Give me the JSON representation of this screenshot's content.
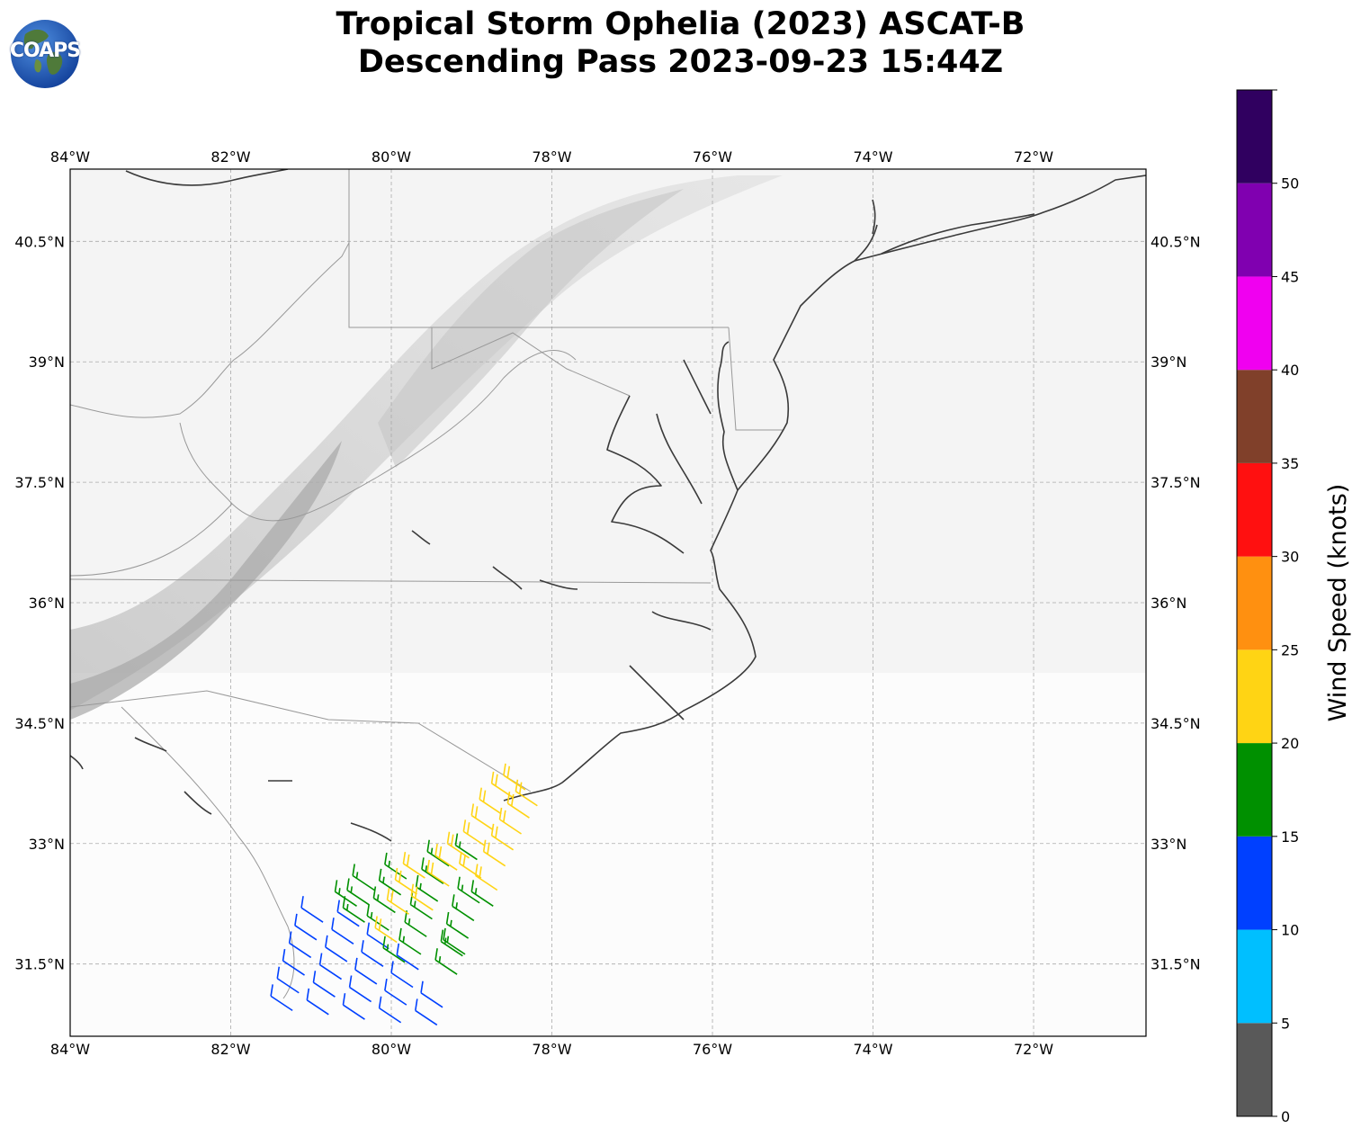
{
  "title": {
    "line1": "Tropical Storm Ophelia (2023) ASCAT-B",
    "line2": "Descending Pass 2023-09-23 15:44Z"
  },
  "logo": {
    "text": "COAPS",
    "icon": "globe-logo-icon"
  },
  "map": {
    "projection": "PlateCarree",
    "lon_range": [
      -84,
      -70.6
    ],
    "lat_range": [
      30.6,
      41.4
    ],
    "lon_ticks": [
      "84°W",
      "82°W",
      "80°W",
      "78°W",
      "76°W",
      "74°W",
      "72°W"
    ],
    "lat_ticks": [
      "40.5°N",
      "39°N",
      "37.5°N",
      "36°N",
      "34.5°N",
      "33°N",
      "31.5°N"
    ],
    "grid": true,
    "background": "grayscale satellite imagery",
    "features": [
      "coastlines",
      "state borders"
    ]
  },
  "colorbar": {
    "label": "Wind Speed (knots)",
    "ticks": [
      "0",
      "5",
      "10",
      "15",
      "20",
      "25",
      "30",
      "35",
      "40",
      "45",
      "50"
    ],
    "bins": [
      {
        "min": 0,
        "max": 5,
        "color": "#595959"
      },
      {
        "min": 5,
        "max": 10,
        "color": "#00bfff"
      },
      {
        "min": 10,
        "max": 15,
        "color": "#0040ff"
      },
      {
        "min": 15,
        "max": 20,
        "color": "#009000"
      },
      {
        "min": 20,
        "max": 25,
        "color": "#ffd414"
      },
      {
        "min": 25,
        "max": 30,
        "color": "#ff9010"
      },
      {
        "min": 30,
        "max": 35,
        "color": "#ff1010"
      },
      {
        "min": 35,
        "max": 40,
        "color": "#80402a"
      },
      {
        "min": 40,
        "max": 45,
        "color": "#f000f0"
      },
      {
        "min": 45,
        "max": 50,
        "color": "#8000b0"
      },
      {
        "min": 50,
        "max": 55,
        "color": "#300060"
      }
    ]
  },
  "chart_data": {
    "type": "scatter",
    "series": [
      {
        "speed_kt": 12,
        "points": [
          [
            -81.5,
            31.1
          ],
          [
            -81.42,
            31.32
          ],
          [
            -81.35,
            31.54
          ],
          [
            -81.27,
            31.76
          ],
          [
            -81.2,
            31.98
          ],
          [
            -81.12,
            32.2
          ],
          [
            -81.05,
            31.05
          ],
          [
            -80.97,
            31.27
          ],
          [
            -80.89,
            31.49
          ],
          [
            -80.82,
            31.71
          ],
          [
            -80.74,
            31.93
          ],
          [
            -80.67,
            32.15
          ],
          [
            -80.6,
            30.99
          ],
          [
            -80.52,
            31.21
          ],
          [
            -80.45,
            31.43
          ],
          [
            -80.37,
            31.65
          ],
          [
            -80.3,
            31.87
          ],
          [
            -80.15,
            30.95
          ],
          [
            -80.08,
            31.17
          ],
          [
            -80.0,
            31.39
          ],
          [
            -79.93,
            31.61
          ],
          [
            -79.7,
            30.92
          ],
          [
            -79.63,
            31.14
          ]
        ]
      },
      {
        "speed_kt": 18,
        "points": [
          [
            -80.6,
            32.2
          ],
          [
            -80.55,
            32.42
          ],
          [
            -80.48,
            32.6
          ],
          [
            -80.3,
            32.1
          ],
          [
            -80.22,
            32.32
          ],
          [
            -80.15,
            32.54
          ],
          [
            -80.08,
            32.74
          ],
          [
            -79.9,
            31.8
          ],
          [
            -79.83,
            32.02
          ],
          [
            -79.76,
            32.24
          ],
          [
            -79.69,
            32.46
          ],
          [
            -79.62,
            32.68
          ],
          [
            -79.55,
            32.9
          ],
          [
            -79.45,
            31.55
          ],
          [
            -79.38,
            31.78
          ],
          [
            -79.31,
            32.0
          ],
          [
            -79.24,
            32.22
          ],
          [
            -79.17,
            32.44
          ],
          [
            -79.2,
            32.98
          ],
          [
            -79.0,
            32.4
          ],
          [
            -79.35,
            31.8
          ],
          [
            -80.1,
            31.7
          ],
          [
            -80.7,
            32.4
          ]
        ]
      },
      {
        "speed_kt": 22,
        "points": [
          [
            -80.2,
            31.95
          ],
          [
            -80.05,
            32.3
          ],
          [
            -79.95,
            32.55
          ],
          [
            -79.85,
            32.75
          ],
          [
            -79.45,
            32.85
          ],
          [
            -79.3,
            33.0
          ],
          [
            -79.1,
            33.15
          ],
          [
            -79.0,
            33.35
          ],
          [
            -78.9,
            33.55
          ],
          [
            -78.75,
            33.75
          ],
          [
            -78.6,
            33.85
          ],
          [
            -78.85,
            32.9
          ],
          [
            -78.75,
            33.1
          ],
          [
            -78.65,
            33.3
          ],
          [
            -78.55,
            33.5
          ],
          [
            -78.45,
            33.65
          ],
          [
            -79.15,
            32.75
          ],
          [
            -78.95,
            32.6
          ],
          [
            -79.75,
            32.35
          ],
          [
            -79.55,
            32.65
          ]
        ]
      }
    ]
  }
}
